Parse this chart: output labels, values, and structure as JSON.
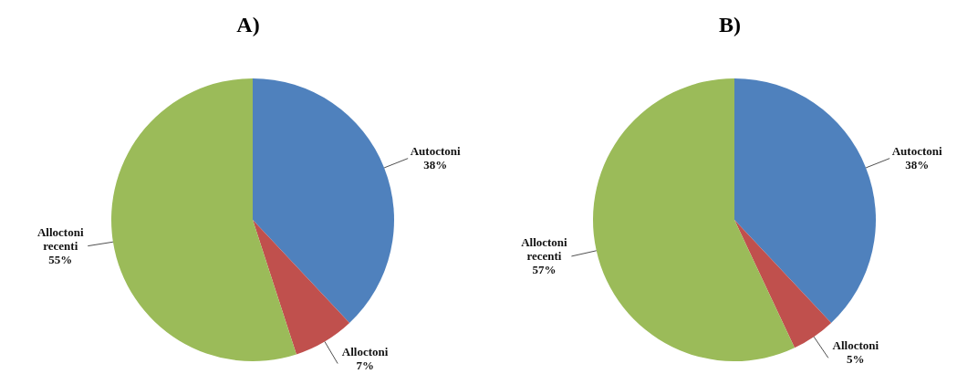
{
  "chart_data": [
    {
      "type": "pie",
      "title": "A)",
      "categories": [
        "Autoctoni",
        "Alloctoni",
        "Alloctoni recenti"
      ],
      "values": [
        38,
        7,
        55
      ],
      "value_labels": [
        "38%",
        "7%",
        "55%"
      ],
      "colors": [
        "#4f81bd",
        "#c0504d",
        "#9bbb59"
      ]
    },
    {
      "type": "pie",
      "title": "B)",
      "categories": [
        "Autoctoni",
        "Alloctoni",
        "Alloctoni recenti"
      ],
      "values": [
        38,
        5,
        57
      ],
      "value_labels": [
        "38%",
        "5%",
        "57%"
      ],
      "colors": [
        "#4f81bd",
        "#c0504d",
        "#9bbb59"
      ]
    }
  ]
}
